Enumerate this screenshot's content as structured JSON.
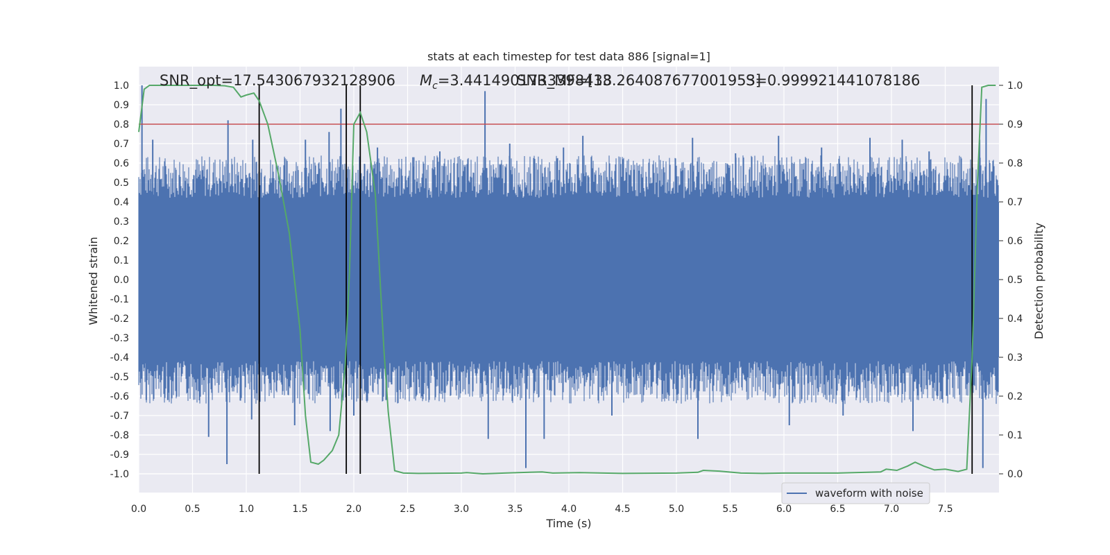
{
  "chart_data": {
    "type": "line",
    "title": "stats at each timestep for test data 886 [signal=1]",
    "xlabel": "Time (s)",
    "ylabel": "Whitened strain",
    "ylabel_right": "Detection probability",
    "xlim": [
      0,
      8
    ],
    "ylim": [
      -1.05,
      1.05
    ],
    "ylim_right": [
      -0.05,
      1.05
    ],
    "x_ticks": [
      "0.0",
      "0.5",
      "1.0",
      "1.5",
      "2.0",
      "2.5",
      "3.0",
      "3.5",
      "4.0",
      "4.5",
      "5.0",
      "5.5",
      "6.0",
      "6.5",
      "7.0",
      "7.5"
    ],
    "y_ticks": [
      "-1.0",
      "-0.9",
      "-0.8",
      "-0.7",
      "-0.6",
      "-0.5",
      "-0.4",
      "-0.3",
      "-0.2",
      "-0.1",
      "0.0",
      "0.1",
      "0.2",
      "0.3",
      "0.4",
      "0.5",
      "0.6",
      "0.7",
      "0.8",
      "0.9",
      "1.0"
    ],
    "y_ticks_right": [
      "0.0",
      "0.1",
      "0.2",
      "0.3",
      "0.4",
      "0.5",
      "0.6",
      "0.7",
      "0.8",
      "0.9",
      "1.0"
    ],
    "annotations": {
      "snr_opt": "SNR_opt=17.543067932128906",
      "mc_prefix": "M",
      "mc_sub": "c",
      "mc_value": "=3.4414901733398438",
      "snr_mf": "SNR_MF=[13.264087677001953]",
      "s_value": "S=0.999921441078186"
    },
    "legend": {
      "label": "waveform with noise",
      "placement": "lower-right"
    },
    "threshold": 0.9,
    "vertical_lines": [
      1.12,
      1.93,
      2.06,
      7.75
    ],
    "grid": true,
    "series": [
      {
        "name": "waveform with noise",
        "color": "#4c72b0",
        "noise_band": [
          -0.4,
          0.4
        ],
        "spikes": [
          [
            0.03,
            1.0
          ],
          [
            0.13,
            0.72
          ],
          [
            0.83,
            0.82
          ],
          [
            1.06,
            0.72
          ],
          [
            1.55,
            0.72
          ],
          [
            1.77,
            0.76
          ],
          [
            1.88,
            0.88
          ],
          [
            2.22,
            0.68
          ],
          [
            2.55,
            0.63
          ],
          [
            2.8,
            0.66
          ],
          [
            3.22,
            0.97
          ],
          [
            3.45,
            0.7
          ],
          [
            3.95,
            0.68
          ],
          [
            4.13,
            0.74
          ],
          [
            4.5,
            0.62
          ],
          [
            5.15,
            0.73
          ],
          [
            5.55,
            0.65
          ],
          [
            5.95,
            0.74
          ],
          [
            6.35,
            0.68
          ],
          [
            6.8,
            0.73
          ],
          [
            7.1,
            0.72
          ],
          [
            7.35,
            0.66
          ],
          [
            7.82,
            0.72
          ],
          [
            7.88,
            0.93
          ],
          [
            0.07,
            -0.62
          ],
          [
            0.27,
            -0.62
          ],
          [
            0.65,
            -0.81
          ],
          [
            0.82,
            -0.95
          ],
          [
            1.05,
            -0.72
          ],
          [
            1.45,
            -0.75
          ],
          [
            1.78,
            -0.78
          ],
          [
            2.0,
            -0.7
          ],
          [
            2.3,
            -0.62
          ],
          [
            3.25,
            -0.82
          ],
          [
            3.6,
            -0.97
          ],
          [
            3.77,
            -0.82
          ],
          [
            4.4,
            -0.7
          ],
          [
            5.2,
            -0.82
          ],
          [
            6.05,
            -0.75
          ],
          [
            6.55,
            -0.7
          ],
          [
            7.2,
            -0.78
          ],
          [
            7.85,
            -0.97
          ]
        ]
      },
      {
        "name": "",
        "axis": "right",
        "color": "#55a868",
        "x": [
          0.0,
          0.05,
          0.1,
          0.2,
          0.3,
          0.5,
          0.7,
          0.8,
          0.88,
          0.95,
          1.0,
          1.07,
          1.12,
          1.2,
          1.3,
          1.4,
          1.5,
          1.55,
          1.6,
          1.67,
          1.72,
          1.8,
          1.86,
          1.92,
          1.96,
          2.0,
          2.06,
          2.12,
          2.2,
          2.28,
          2.32,
          2.38,
          2.46,
          2.6,
          3.0,
          3.05,
          3.2,
          3.4,
          3.75,
          3.85,
          4.1,
          4.5,
          5.0,
          5.2,
          5.25,
          5.4,
          5.6,
          5.8,
          6.0,
          6.5,
          6.9,
          6.95,
          7.05,
          7.15,
          7.22,
          7.3,
          7.4,
          7.5,
          7.62,
          7.7,
          7.75,
          7.8,
          7.84,
          7.9,
          7.97
        ],
        "y": [
          0.88,
          0.99,
          1.0,
          1.0,
          1.0,
          1.0,
          1.0,
          0.999,
          0.995,
          0.97,
          0.975,
          0.98,
          0.96,
          0.9,
          0.77,
          0.62,
          0.37,
          0.15,
          0.03,
          0.025,
          0.035,
          0.06,
          0.1,
          0.28,
          0.52,
          0.9,
          0.93,
          0.88,
          0.72,
          0.32,
          0.16,
          0.008,
          0.002,
          0.001,
          0.002,
          0.003,
          0.0,
          0.002,
          0.005,
          0.002,
          0.003,
          0.001,
          0.002,
          0.004,
          0.009,
          0.007,
          0.002,
          0.001,
          0.002,
          0.002,
          0.005,
          0.012,
          0.009,
          0.02,
          0.03,
          0.02,
          0.01,
          0.012,
          0.006,
          0.012,
          0.3,
          0.75,
          0.995,
          1.0,
          1.0
        ]
      }
    ]
  }
}
